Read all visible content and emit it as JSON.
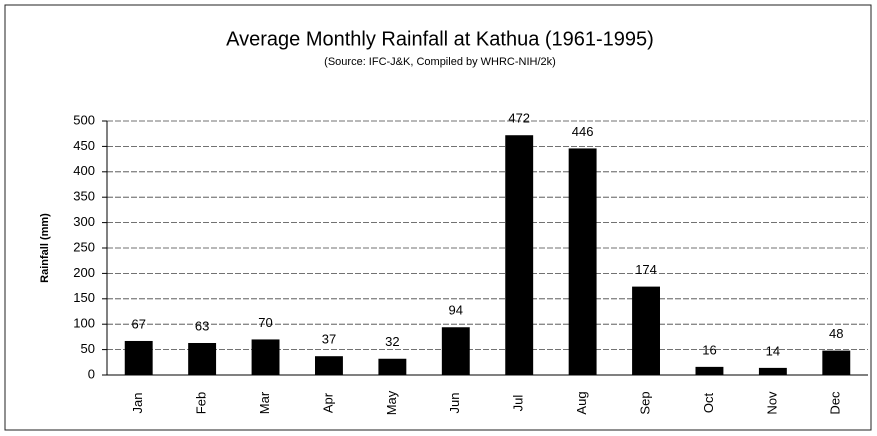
{
  "chart_data": {
    "type": "bar",
    "title": "Average Monthly Rainfall at Kathua (1961-1995)",
    "subtitle": "(Source: IFC-J&K, Compiled by WHRC-NIH/2k)",
    "y_label": "Rainfall (mm)",
    "categories": [
      "Jan",
      "Feb",
      "Mar",
      "Apr",
      "May",
      "Jun",
      "Jul",
      "Aug",
      "Sep",
      "Oct",
      "Nov",
      "Dec"
    ],
    "values": [
      67,
      63,
      70,
      37,
      32,
      94,
      472,
      446,
      174,
      16,
      14,
      48
    ],
    "color": "#000000",
    "ylim": [
      0,
      500
    ],
    "yticks": [
      0,
      50,
      100,
      150,
      200,
      250,
      300,
      350,
      400,
      450,
      500
    ],
    "grid": true
  }
}
